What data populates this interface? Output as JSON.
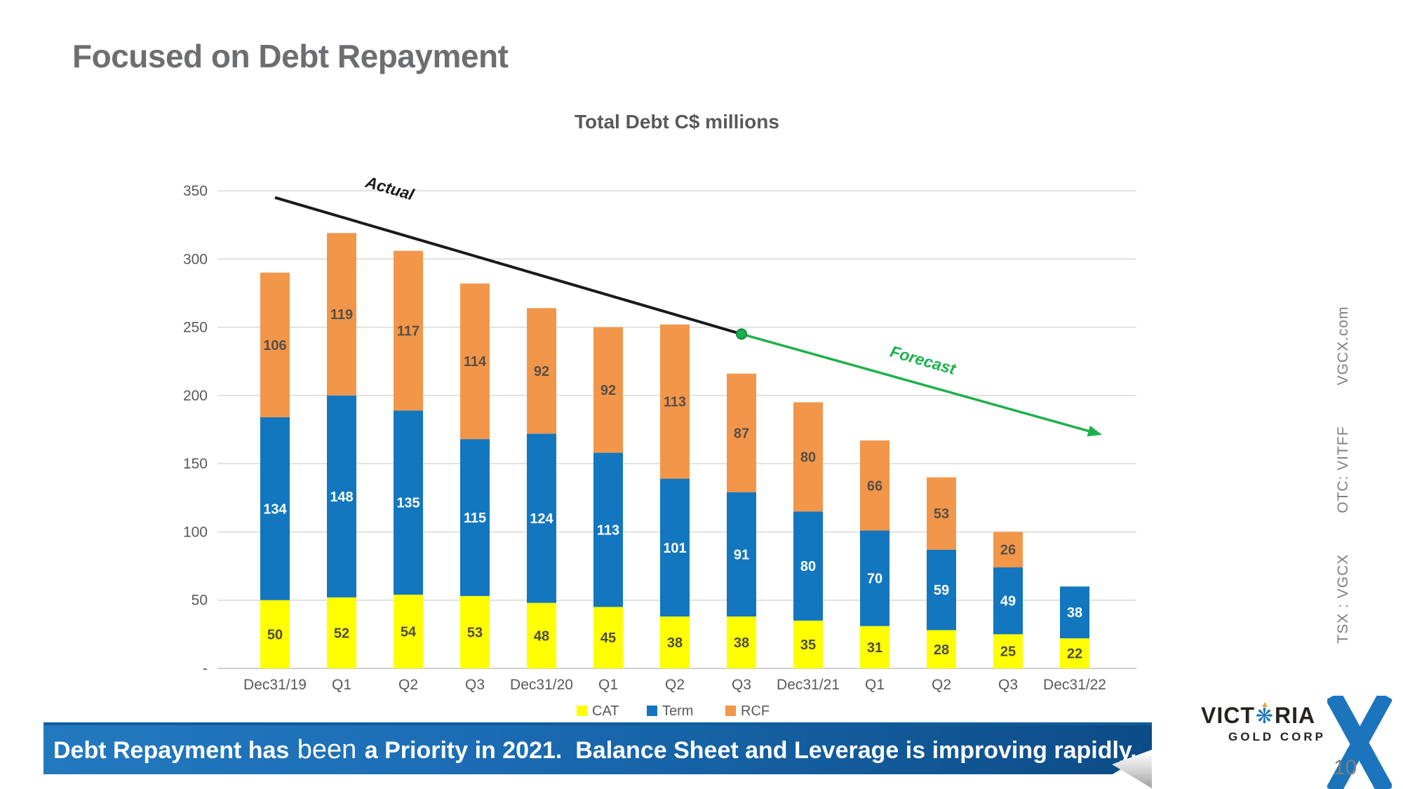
{
  "slide": {
    "title": "Focused on Debt Repayment",
    "page_number": "10",
    "banner": {
      "part1": "Debt Repayment has ",
      "part2": "been",
      "part3": " a Priority in 2021.  Balance Sheet and Leverage is improving rapidly."
    }
  },
  "sidebar": {
    "items": [
      "TSX : VGCX",
      "OTC: VITFF",
      "VGCX.com"
    ]
  },
  "logo": {
    "part1": "VICT",
    "o_icon": "❋",
    "part2": "RIA",
    "subtitle": "GOLD CORP"
  },
  "chart_data": {
    "type": "bar",
    "stacked": true,
    "title": "Total Debt C$ millions",
    "categories": [
      "Dec31/19",
      "Q1",
      "Q2",
      "Q3",
      "Dec31/20",
      "Q1",
      "Q2",
      "Q3",
      "Dec31/21",
      "Q1",
      "Q2",
      "Q3",
      "Dec31/22"
    ],
    "series": [
      {
        "name": "CAT",
        "color": "#FFFF00",
        "label_color": "#4d4d42",
        "values": [
          50,
          52,
          54,
          53,
          48,
          45,
          38,
          38,
          35,
          31,
          28,
          25,
          22
        ]
      },
      {
        "name": "Term",
        "color": "#1277BE",
        "label_color": "#ffffff",
        "values": [
          134,
          148,
          135,
          115,
          124,
          113,
          101,
          91,
          80,
          70,
          59,
          49,
          38
        ]
      },
      {
        "name": "RCF",
        "color": "#F2964A",
        "label_color": "#575046",
        "values": [
          106,
          119,
          117,
          114,
          92,
          92,
          113,
          87,
          80,
          66,
          53,
          26,
          0
        ]
      }
    ],
    "ylim": [
      0,
      350
    ],
    "yticks": [
      {
        "value": 0,
        "label": "-"
      },
      {
        "value": 50,
        "label": "50"
      },
      {
        "value": 100,
        "label": "100"
      },
      {
        "value": 150,
        "label": "150"
      },
      {
        "value": 200,
        "label": "200"
      },
      {
        "value": 250,
        "label": "250"
      },
      {
        "value": 300,
        "label": "300"
      },
      {
        "value": 350,
        "label": "350"
      }
    ],
    "grid": true,
    "legend_position": "bottom",
    "annotations": {
      "actual": {
        "label": "Actual",
        "color": "#1a1a1a",
        "from": {
          "cat_index": 0,
          "value": 345
        },
        "to": {
          "cat_index": 7,
          "value": 245
        },
        "label_at": {
          "cat_index": 1.7,
          "value": 348
        },
        "label_rotation": 16
      },
      "forecast": {
        "label": "Forecast",
        "color": "#1DB14B",
        "arrow": true,
        "from": {
          "cat_index": 7,
          "value": 245
        },
        "to": {
          "cat_index": 12.35,
          "value": 172
        },
        "label_at": {
          "cat_index": 9.7,
          "value": 222
        },
        "label_rotation": 16
      }
    }
  }
}
